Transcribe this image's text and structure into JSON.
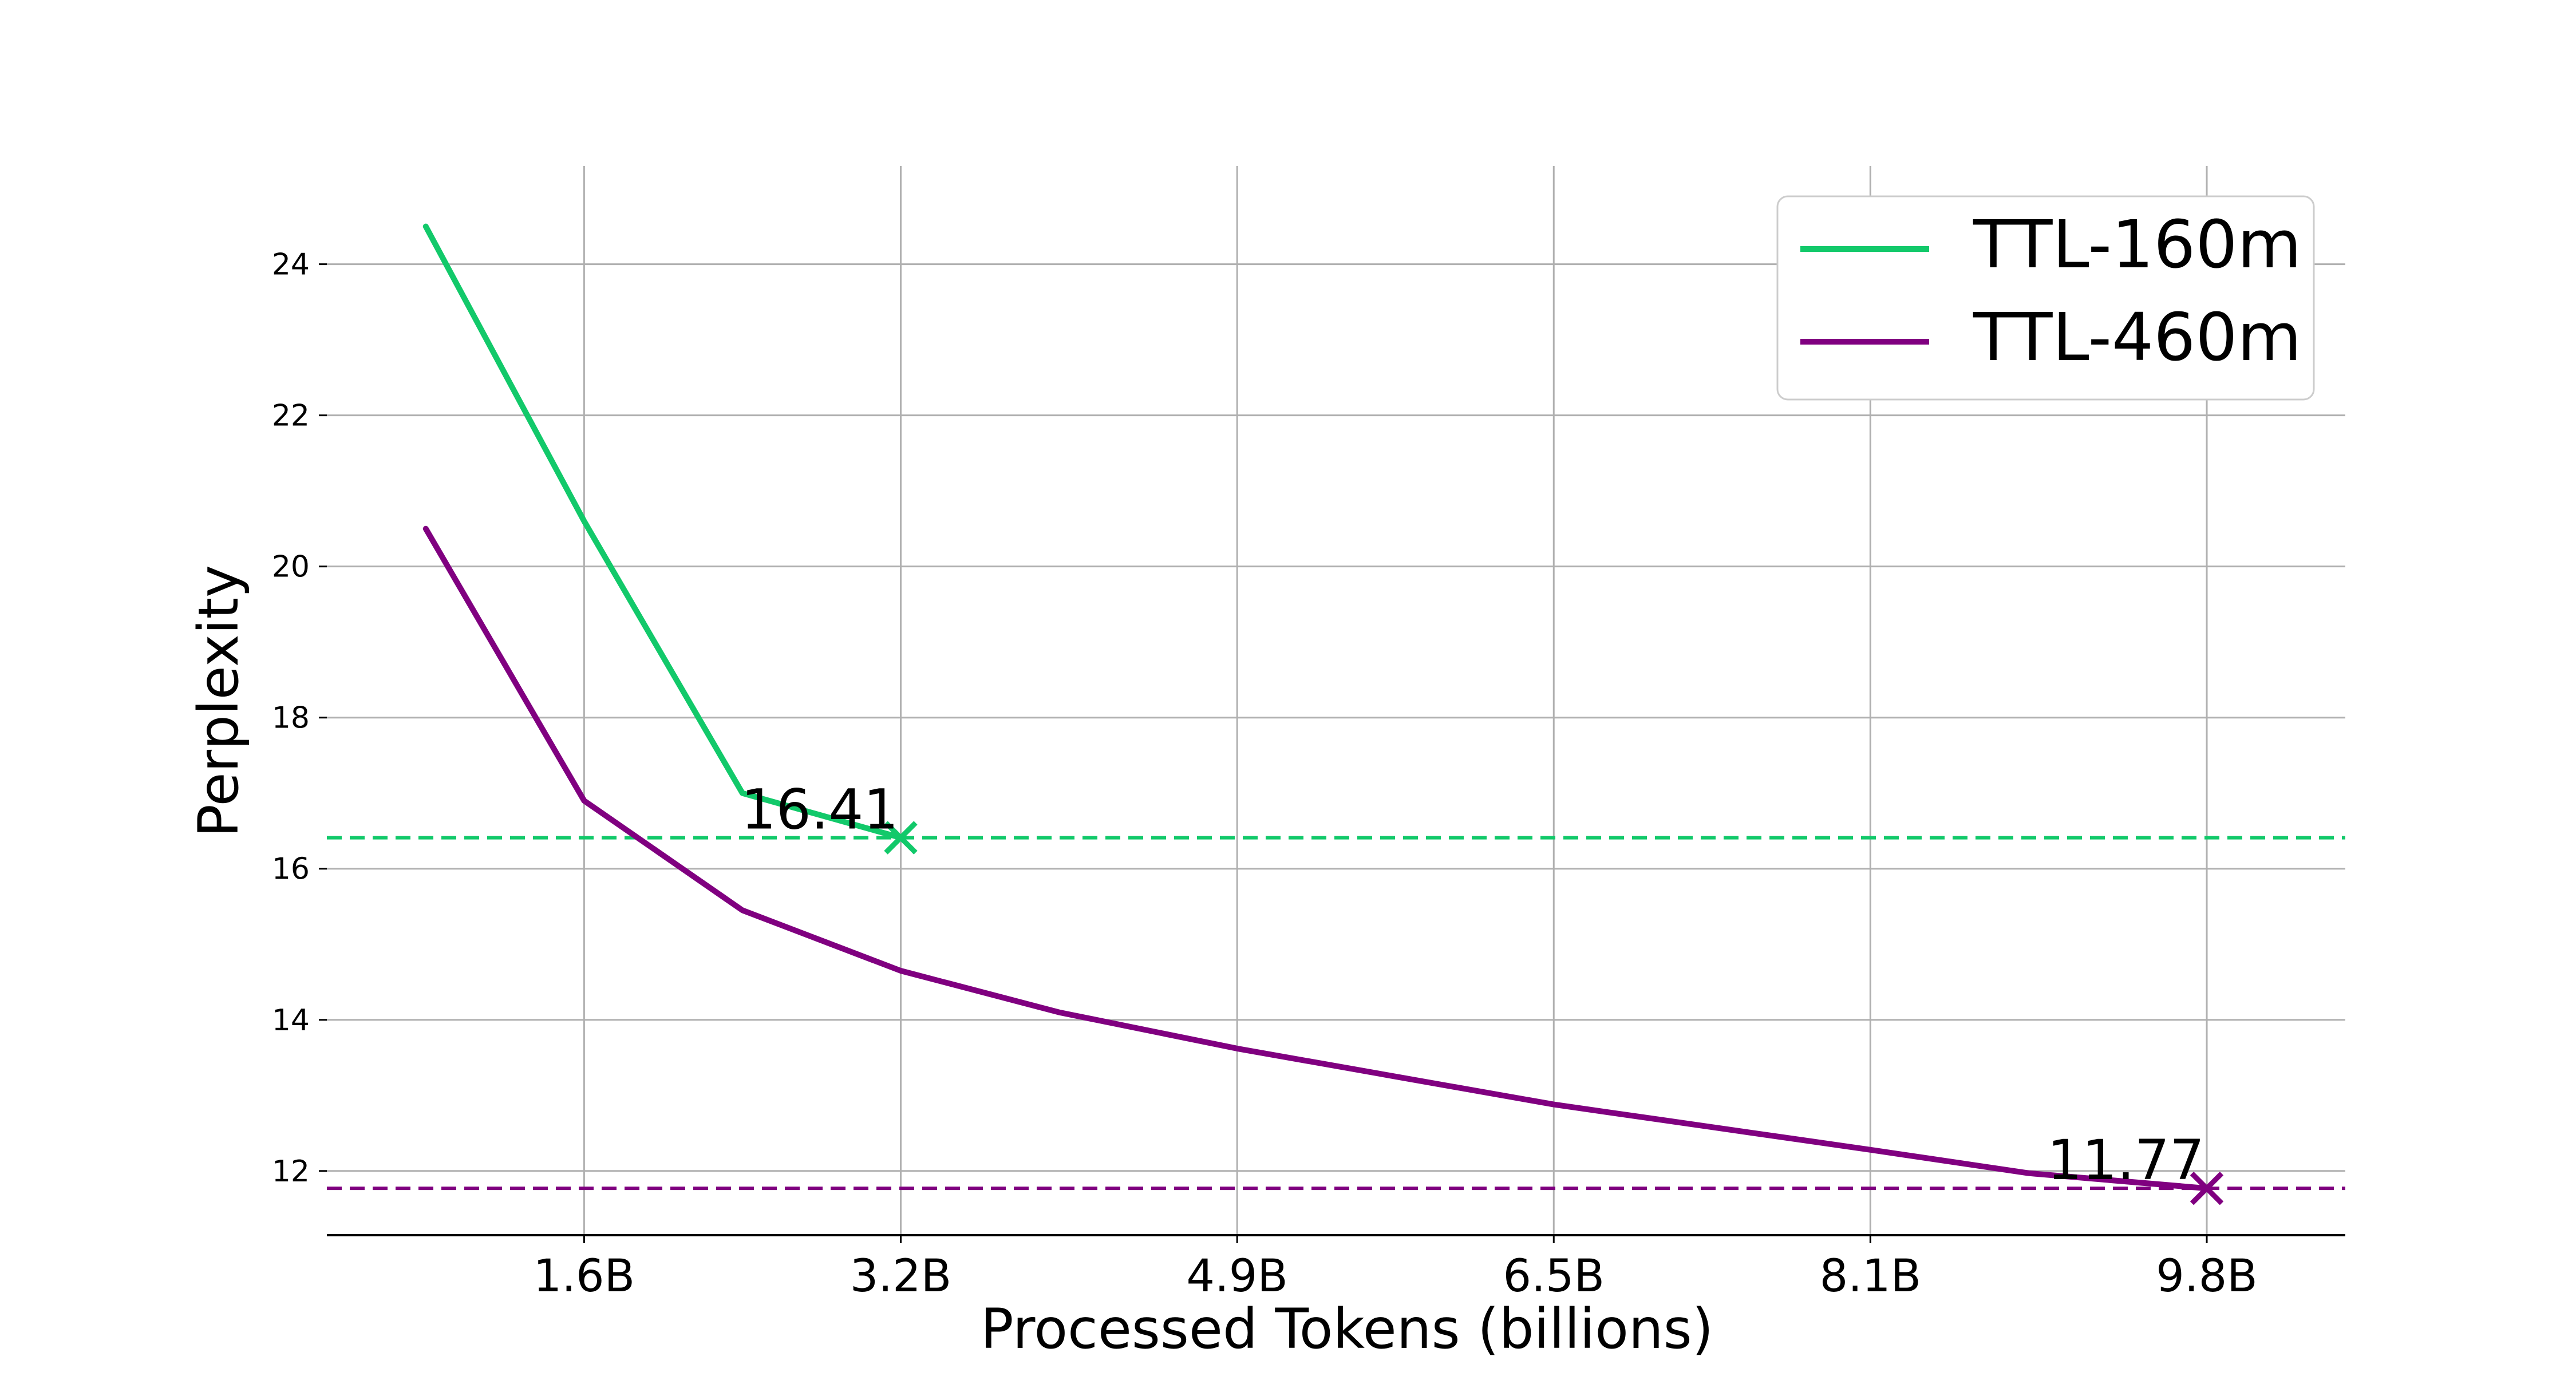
{
  "chart_data": {
    "type": "line",
    "xlabel": "Processed Tokens (billions)",
    "ylabel": "Perplexity",
    "x_tick_labels": [
      "1.6B",
      "3.2B",
      "4.9B",
      "6.5B",
      "8.1B",
      "9.8B"
    ],
    "x_tick_values": [
      1.6,
      3.2,
      4.9,
      6.5,
      8.1,
      9.8
    ],
    "y_ticks": [
      12,
      14,
      16,
      18,
      20,
      22,
      24
    ],
    "xlim": [
      0.3,
      10.5
    ],
    "ylim": [
      11.15,
      25.3
    ],
    "grid": true,
    "legend_position": "top-right",
    "series": [
      {
        "name": "TTL-160m",
        "color": "#12c96a",
        "x": [
          0.8,
          1.6,
          2.4,
          3.2
        ],
        "y": [
          24.5,
          20.6,
          17.0,
          16.41
        ],
        "final_value": 16.41,
        "final_label": "16.41"
      },
      {
        "name": "TTL-460m",
        "color": "#800080",
        "x": [
          0.8,
          1.6,
          2.4,
          3.2,
          4.0,
          4.9,
          5.7,
          6.5,
          7.3,
          8.1,
          8.9,
          9.8
        ],
        "y": [
          20.5,
          16.9,
          15.45,
          14.65,
          14.1,
          13.62,
          13.25,
          12.88,
          12.58,
          12.28,
          11.97,
          11.77
        ],
        "final_value": 11.77,
        "final_label": "11.77"
      }
    ]
  }
}
